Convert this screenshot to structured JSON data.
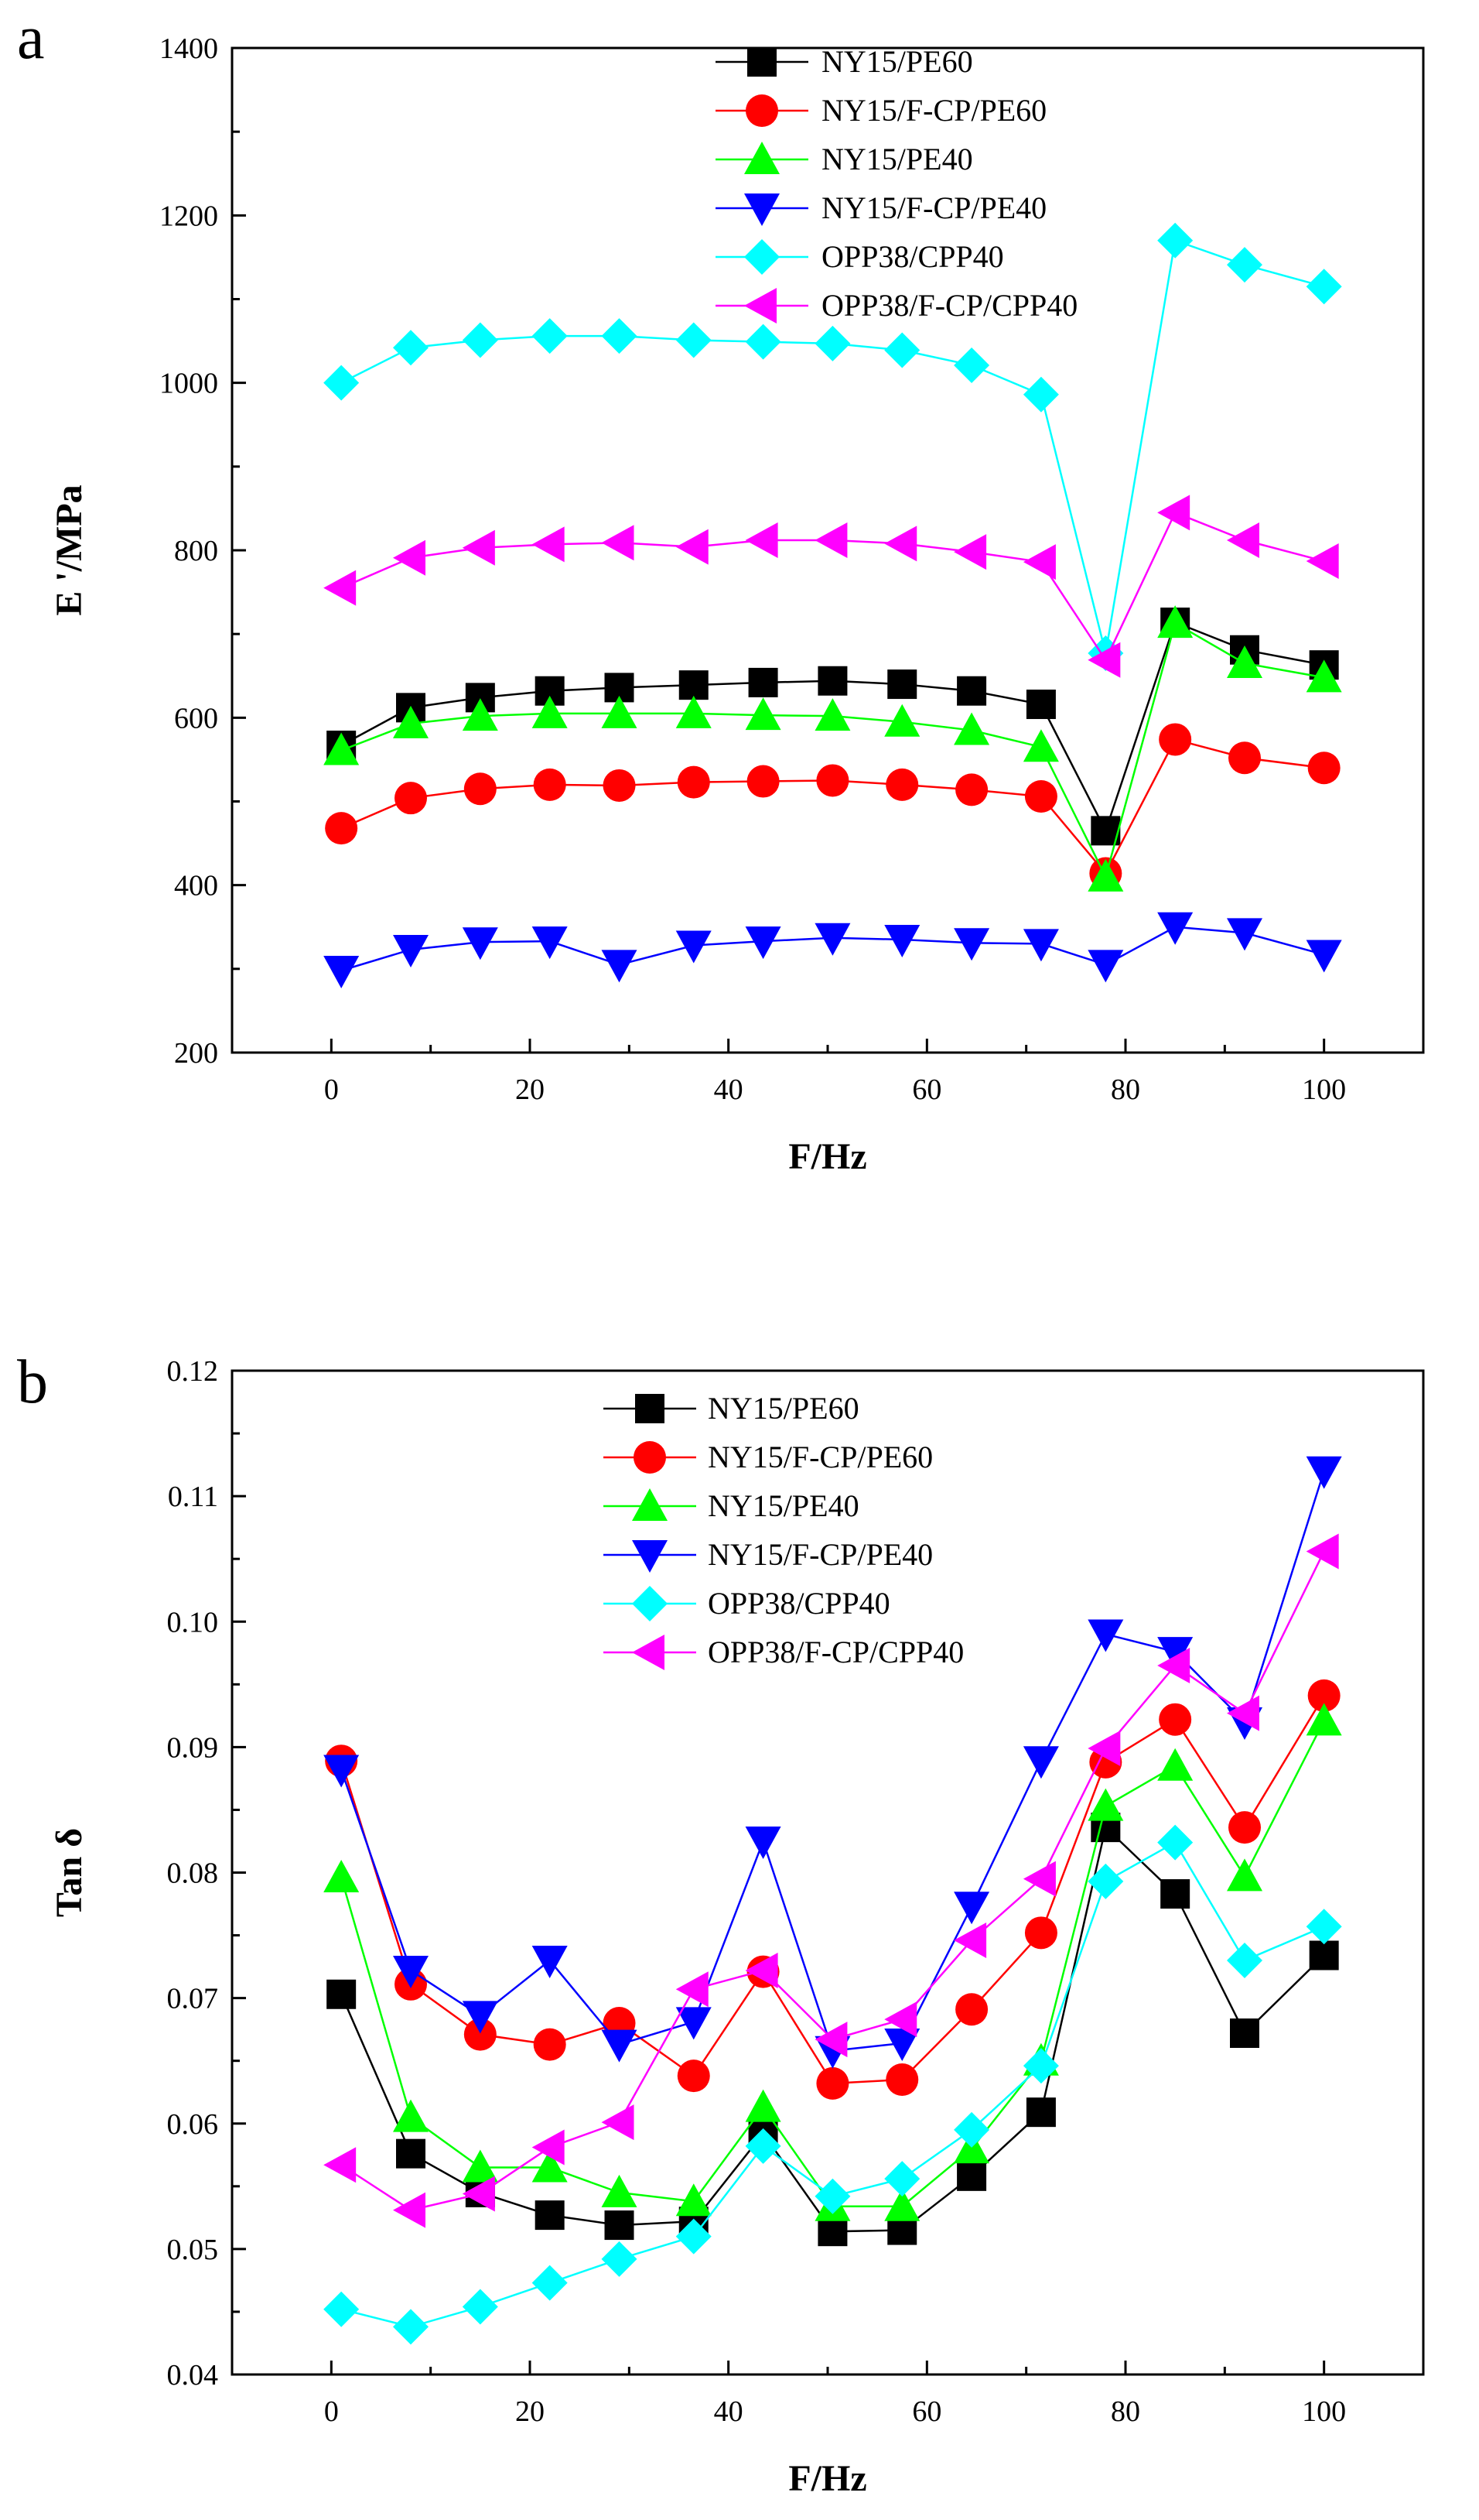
{
  "chart_data": [
    {
      "panel_label": "a",
      "type": "line",
      "xlabel": "F/Hz",
      "ylabel": "E '/MPa",
      "xlim": [
        -10,
        110
      ],
      "ylim": [
        200,
        1400
      ],
      "xticks": [
        0,
        20,
        40,
        60,
        80,
        100
      ],
      "yticks": [
        200,
        400,
        600,
        800,
        1000,
        1200,
        1400
      ],
      "x": [
        1,
        8,
        15,
        22,
        29,
        36.5,
        43.5,
        50.5,
        57.5,
        64.5,
        71.5,
        78,
        85,
        92,
        100
      ],
      "legend_position": "top-center",
      "series": [
        {
          "name": "NY15/PE60",
          "color": "#000000",
          "marker": "square",
          "values": [
            567,
            612,
            624,
            632,
            636,
            639,
            642,
            644,
            640,
            632,
            616,
            465,
            714,
            681,
            663
          ]
        },
        {
          "name": "NY15/F-CP/PE60",
          "color": "#ff0000",
          "marker": "circle",
          "values": [
            468,
            504,
            515,
            520,
            519,
            523,
            524,
            525,
            520,
            514,
            506,
            414,
            574,
            552,
            540
          ]
        },
        {
          "name": "NY15/PE40",
          "color": "#00ff00",
          "marker": "triangle-up",
          "values": [
            561,
            593,
            602,
            605,
            605,
            605,
            603,
            602,
            595,
            585,
            565,
            410,
            713,
            665,
            648
          ]
        },
        {
          "name": "NY15/F-CP/PE40",
          "color": "#0000ff",
          "marker": "triangle-down",
          "values": [
            298,
            323,
            332,
            333,
            305,
            328,
            333,
            337,
            335,
            331,
            330,
            305,
            350,
            343,
            317
          ]
        },
        {
          "name": "OPP38/CPP40",
          "color": "#00ffff",
          "marker": "diamond",
          "values": [
            1000,
            1042,
            1051,
            1056,
            1056,
            1051,
            1049,
            1047,
            1039,
            1021,
            986,
            677,
            1170,
            1141,
            1115
          ]
        },
        {
          "name": "OPP38/F-CP/CPP40",
          "color": "#ff00ff",
          "marker": "triangle-left",
          "values": [
            755,
            791,
            803,
            807,
            809,
            804,
            812,
            812,
            808,
            798,
            786,
            669,
            845,
            812,
            787
          ]
        }
      ]
    },
    {
      "panel_label": "b",
      "type": "line",
      "xlabel": "F/Hz",
      "ylabel": "Tan δ",
      "xlim": [
        -10,
        110
      ],
      "ylim": [
        0.04,
        0.12
      ],
      "xticks": [
        0,
        20,
        40,
        60,
        80,
        100
      ],
      "yticks": [
        0.04,
        0.05,
        0.06,
        0.07,
        0.08,
        0.09,
        0.1,
        0.11,
        0.12
      ],
      "ytick_labels": [
        "0.04",
        "0.05",
        "0.06",
        "0.07",
        "0.08",
        "0.09",
        "0.10",
        "0.11",
        "0.12"
      ],
      "x": [
        1,
        8,
        15,
        22,
        29,
        36.5,
        43.5,
        50.5,
        57.5,
        64.5,
        71.5,
        78,
        85,
        92,
        100
      ],
      "legend_position": "top-center",
      "series": [
        {
          "name": "NY15/PE60",
          "color": "#000000",
          "marker": "square",
          "values": [
            0.0703,
            0.0576,
            0.0545,
            0.0527,
            0.0519,
            0.0522,
            0.0592,
            0.0514,
            0.0515,
            0.0558,
            0.0609,
            0.0836,
            0.0783,
            0.0672,
            0.0734
          ]
        },
        {
          "name": "NY15/F-CP/PE60",
          "color": "#ff0000",
          "marker": "circle",
          "values": [
            0.0889,
            0.0711,
            0.0671,
            0.0663,
            0.068,
            0.0638,
            0.0721,
            0.0632,
            0.0635,
            0.0691,
            0.0752,
            0.0888,
            0.0922,
            0.0836,
            0.0941
          ]
        },
        {
          "name": "NY15/PE40",
          "color": "#00ff00",
          "marker": "triangle-up",
          "values": [
            0.0796,
            0.0605,
            0.0565,
            0.0565,
            0.0545,
            0.0538,
            0.0613,
            0.0534,
            0.0534,
            0.058,
            0.065,
            0.0853,
            0.0885,
            0.0797,
            0.0921
          ]
        },
        {
          "name": "NY15/F-CP/PE40",
          "color": "#0000ff",
          "marker": "triangle-down",
          "values": [
            0.0882,
            0.0722,
            0.0686,
            0.073,
            0.0663,
            0.0681,
            0.0825,
            0.0658,
            0.0664,
            0.0773,
            0.0889,
            0.099,
            0.0976,
            0.092,
            0.112
          ]
        },
        {
          "name": "OPP38/CPP40",
          "color": "#00ffff",
          "marker": "diamond",
          "values": [
            0.0452,
            0.0438,
            0.0454,
            0.0473,
            0.0492,
            0.051,
            0.0582,
            0.0542,
            0.0556,
            0.0595,
            0.0646,
            0.0793,
            0.0824,
            0.073,
            0.0757
          ]
        },
        {
          "name": "OPP38/F-CP/CPP40",
          "color": "#ff00ff",
          "marker": "triangle-left",
          "values": [
            0.0567,
            0.0531,
            0.0544,
            0.0581,
            0.0601,
            0.0707,
            0.0722,
            0.0667,
            0.0683,
            0.0746,
            0.0795,
            0.0899,
            0.0965,
            0.0927,
            0.1056
          ]
        }
      ]
    }
  ]
}
